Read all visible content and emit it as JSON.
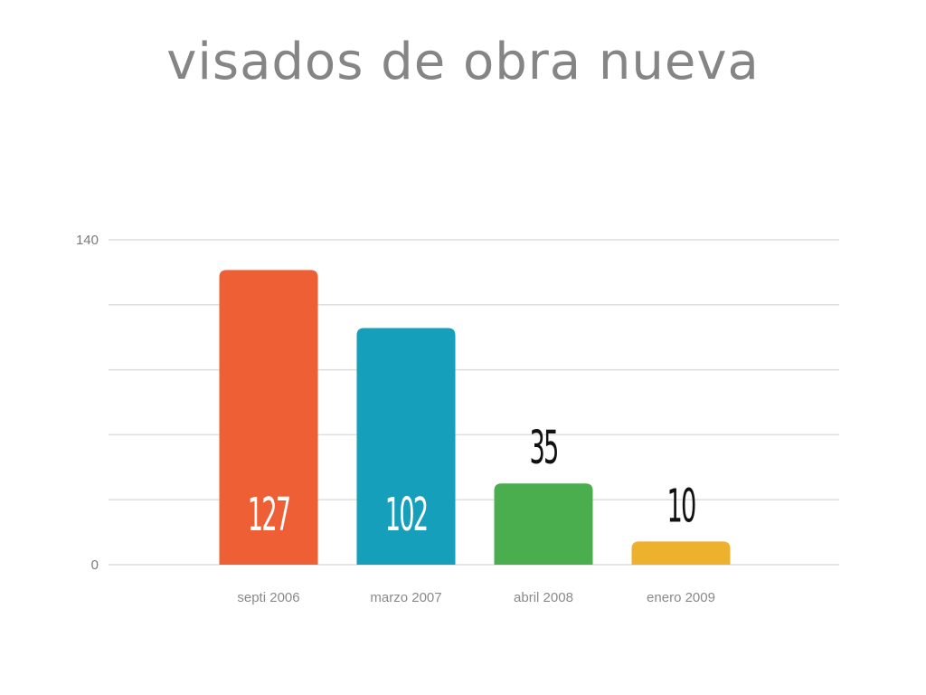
{
  "chart_data": {
    "type": "bar",
    "title": "visados de obra nueva",
    "categories": [
      "septi  2006",
      "marzo 2007",
      "abril 2008",
      "enero 2009"
    ],
    "values": [
      127,
      102,
      35,
      10
    ],
    "value_labels": [
      "127",
      "102",
      "35",
      "10"
    ],
    "value_label_placement": [
      "inside",
      "inside",
      "above",
      "above"
    ],
    "bar_colors": [
      "#ef5f35",
      "#169fbb",
      "#4aad4e",
      "#edb12d"
    ],
    "ylim": [
      0,
      140
    ],
    "ytick_values": [
      0,
      140
    ],
    "ytick_labels": [
      "0",
      "140"
    ],
    "gridlines": [
      0,
      28,
      56,
      84,
      112,
      140
    ],
    "grid": true,
    "xlabel": "",
    "ylabel": ""
  }
}
